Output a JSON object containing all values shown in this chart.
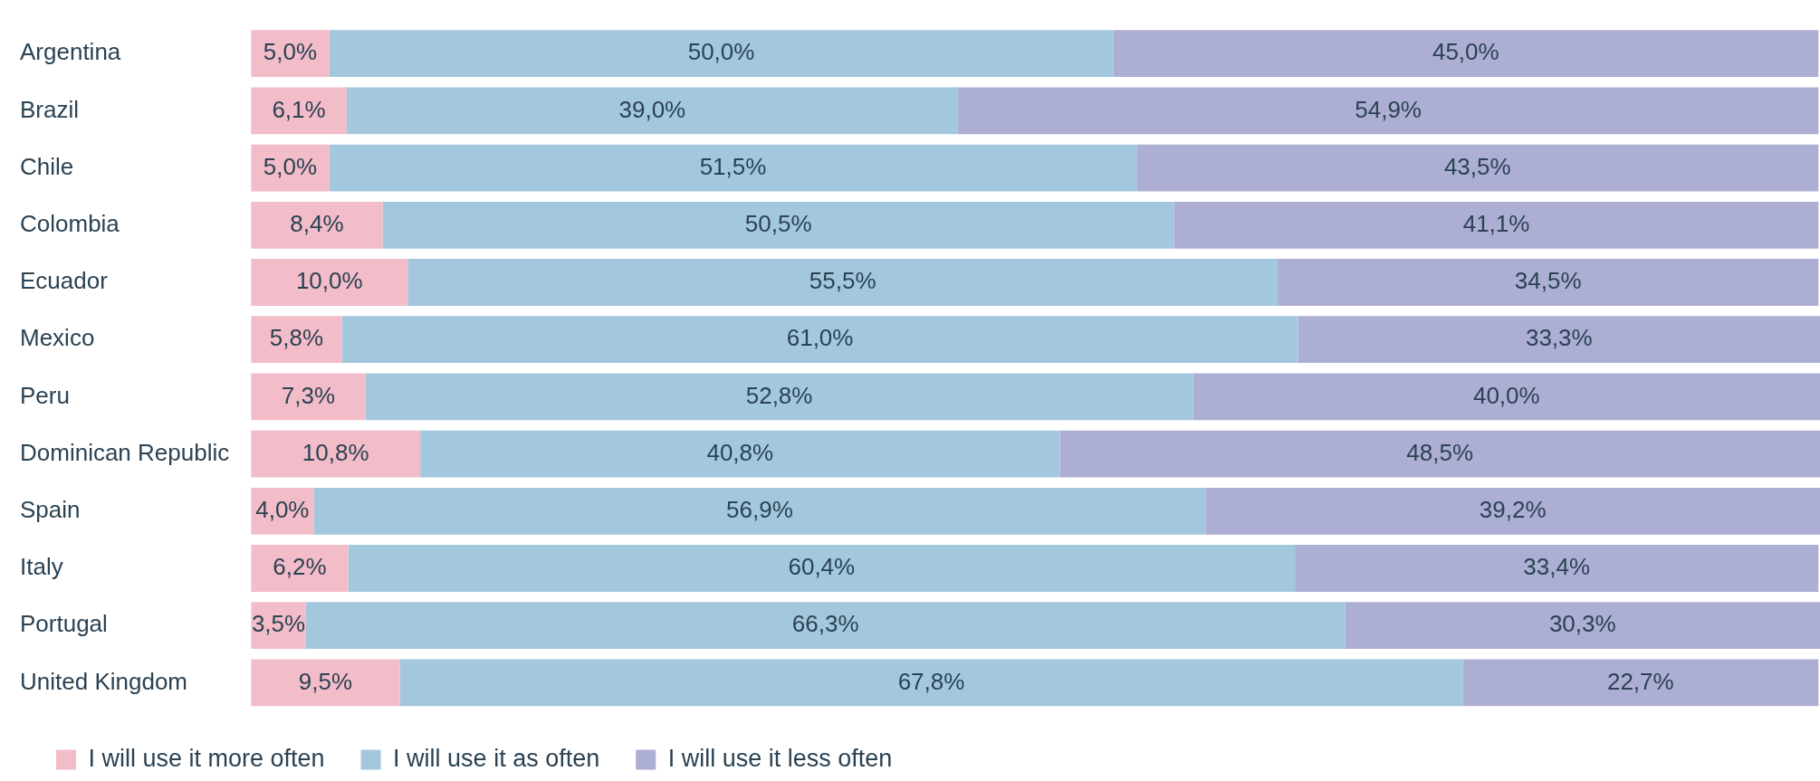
{
  "chart_data": {
    "type": "bar",
    "orientation": "horizontal",
    "stacked": true,
    "legend": "bottom left",
    "tick_labels": "y",
    "xlim": [
      0,
      100.1
    ],
    "categories": [
      "Argentina",
      "Brazil",
      "Chile",
      "Colombia",
      "Ecuador",
      "Mexico",
      "Peru",
      "Dominican Republic",
      "Spain",
      "Italy",
      "Portugal",
      "United Kingdom"
    ],
    "series": [
      {
        "name": "I will use it more often",
        "color": "#f2bcc8",
        "values": [
          5.0,
          6.1,
          5.0,
          8.4,
          10.0,
          5.8,
          7.3,
          10.8,
          4.0,
          6.2,
          3.5,
          9.5
        ],
        "value_labels": [
          "5,0%",
          "6,1%",
          "5,0%",
          "8,4%",
          "10,0%",
          "5,8%",
          "7,3%",
          "10,8%",
          "4,0%",
          "6,2%",
          "3,5%",
          "9,5%"
        ]
      },
      {
        "name": "I will use it as often",
        "color": "#a3c8de",
        "values": [
          50.0,
          39.0,
          51.5,
          50.5,
          55.5,
          61.0,
          52.8,
          40.8,
          56.9,
          60.4,
          66.3,
          67.8
        ],
        "value_labels": [
          "50,0%",
          "39,0%",
          "51,5%",
          "50,5%",
          "55,5%",
          "61,0%",
          "52,8%",
          "40,8%",
          "56,9%",
          "60,4%",
          "66,3%",
          "67,8%"
        ]
      },
      {
        "name": "I will use it less often",
        "color": "#adaed3",
        "values": [
          45.0,
          54.9,
          43.5,
          41.1,
          34.5,
          33.3,
          40.0,
          48.5,
          39.2,
          33.4,
          30.3,
          22.7
        ],
        "value_labels": [
          "45,0%",
          "54,9%",
          "43,5%",
          "41,1%",
          "34,5%",
          "33,3%",
          "40,0%",
          "48,5%",
          "39,2%",
          "33,4%",
          "30,3%",
          "22,7%"
        ]
      }
    ]
  }
}
